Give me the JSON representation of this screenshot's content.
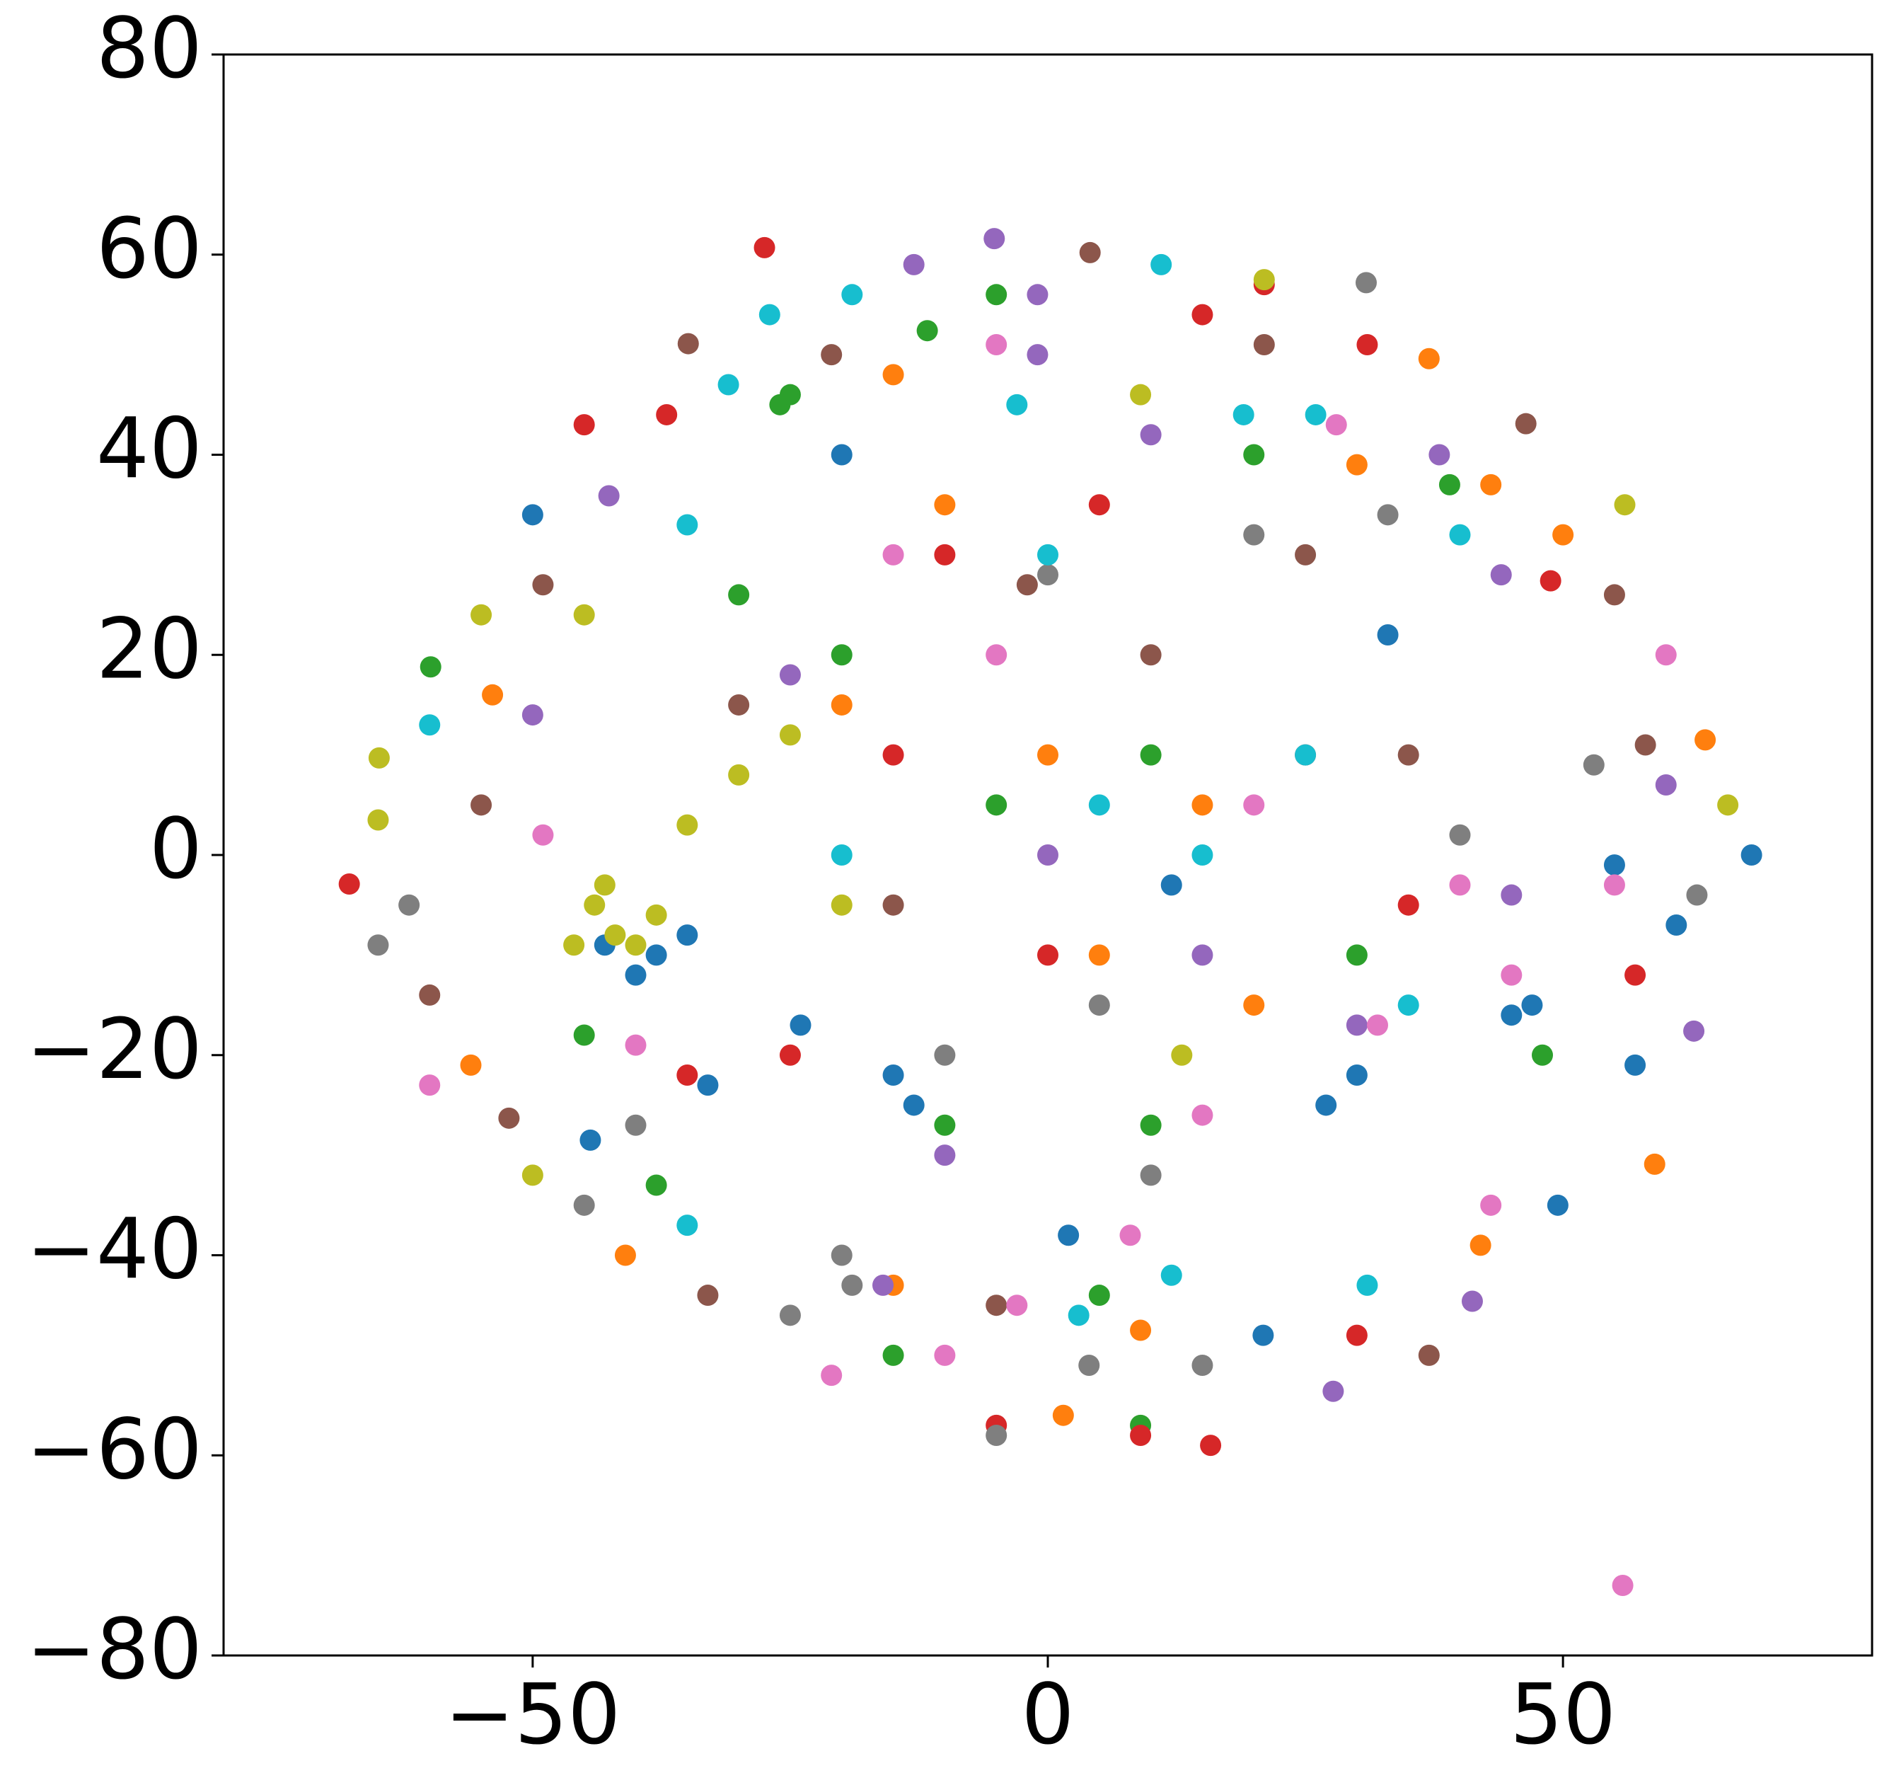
{
  "chart_data": {
    "type": "scatter",
    "xlim": [
      -80,
      80
    ],
    "ylim": [
      -80,
      80
    ],
    "xticks": [
      {
        "value": -50,
        "label": "−50"
      },
      0,
      50
    ],
    "yticks": [
      {
        "value": -80,
        "label": "−80"
      },
      {
        "value": -60,
        "label": "−60"
      },
      {
        "value": -40,
        "label": "−40"
      },
      {
        "value": -20,
        "label": "−20"
      },
      0,
      20,
      40,
      60,
      80
    ],
    "series": [
      {
        "color": "#1f77b4",
        "x": [
          -50,
          68.3,
          -44.4,
          49.5,
          57,
          -33,
          20.9,
          -24,
          -40,
          -38,
          -43,
          -35,
          30,
          27,
          45,
          47,
          12,
          -15,
          -13,
          2,
          33,
          55,
          61,
          -20
        ],
        "values": [
          34,
          0,
          -28.5,
          -35,
          -21,
          -23,
          -48,
          -17,
          -12,
          -10,
          -9,
          -8,
          -22,
          -25,
          -16,
          -15,
          -3,
          -22,
          -25,
          -38,
          22,
          -1,
          -7,
          40
        ]
      },
      {
        "color": "#ff7f0e",
        "x": [
          -41,
          58.9,
          1.5,
          37,
          -15,
          63.8,
          -53.9,
          -56,
          9,
          30,
          50,
          43,
          -10,
          5,
          20,
          -20,
          0,
          15,
          42,
          -15
        ],
        "values": [
          -40,
          -30.9,
          -56,
          49.6,
          48,
          11.5,
          16,
          -21,
          -47.5,
          39,
          32,
          37,
          35,
          -10,
          -15,
          15,
          10,
          5,
          -39,
          -43
        ]
      },
      {
        "color": "#2ca02c",
        "x": [
          -59.9,
          -15,
          9,
          -26,
          -25,
          -11.7,
          -5,
          39,
          20,
          -30,
          -5,
          -45,
          -38,
          10,
          48,
          -20,
          10,
          30,
          -10,
          5
        ],
        "values": [
          18.8,
          -50,
          -57,
          45,
          46,
          52.4,
          56,
          37,
          40,
          26,
          5,
          -18,
          -33,
          -27,
          -20,
          20,
          10,
          -10,
          -27,
          -44
        ]
      },
      {
        "color": "#d62728",
        "x": [
          -67.8,
          -27.5,
          15,
          21,
          31,
          -45,
          -37,
          15.8,
          9,
          -5,
          48.8,
          57,
          30,
          0,
          -10,
          5,
          25,
          -25,
          -15,
          35,
          -35
        ],
        "values": [
          -2.9,
          60.7,
          54,
          57,
          51,
          43,
          44,
          -59,
          -58,
          -57,
          27.4,
          -12,
          -48,
          -10,
          30,
          35,
          10,
          -20,
          10,
          -5,
          -22
        ]
      },
      {
        "color": "#9467bd",
        "x": [
          -5.2,
          -13,
          -1,
          27.7,
          41.2,
          -16,
          62.7,
          60,
          -50,
          -42.6,
          38,
          44,
          -1,
          10,
          -10,
          15,
          -25,
          30,
          45,
          0
        ],
        "values": [
          61.6,
          59,
          56,
          -53.6,
          -44.6,
          -43,
          -17.6,
          7,
          14,
          35.9,
          40,
          28,
          50,
          42,
          -30,
          -10,
          18,
          -17,
          -4,
          0
        ]
      },
      {
        "color": "#8c564b",
        "x": [
          -34.9,
          -21,
          4.1,
          21,
          46.4,
          55,
          58,
          -49,
          -52.3,
          -33,
          37,
          -55,
          -30,
          -15,
          25,
          10,
          -2,
          35,
          -60,
          -5
        ],
        "values": [
          51.1,
          50,
          60.2,
          51,
          43.1,
          26,
          11,
          27,
          -26.3,
          -44,
          -50,
          5,
          15,
          -5,
          30,
          20,
          27,
          10,
          -14,
          -45
        ]
      },
      {
        "color": "#e377c2",
        "x": [
          55.8,
          -60,
          -21,
          -10,
          -5,
          28,
          60,
          -49,
          43,
          8,
          -3,
          45,
          40,
          32,
          15,
          -40,
          20,
          -5,
          55,
          -15
        ],
        "values": [
          -73,
          -23,
          -52,
          -50,
          51,
          43,
          20,
          2,
          -35,
          -38,
          -45,
          -12,
          -3,
          -17,
          -26,
          -19,
          5,
          20,
          -3,
          30
        ]
      },
      {
        "color": "#7f7f7f",
        "x": [
          30.9,
          -25,
          -19,
          -5,
          15,
          4,
          -65,
          -62,
          63,
          53,
          -40,
          -45,
          20,
          33,
          -10,
          5,
          10,
          40,
          -20,
          0
        ],
        "values": [
          57.2,
          -46,
          -43,
          -58,
          -51,
          -51,
          -9,
          -5,
          -4,
          9,
          -27,
          -35,
          32,
          34,
          -20,
          -15,
          -32,
          2,
          -40,
          28
        ]
      },
      {
        "color": "#bcbd22",
        "x": [
          -64.9,
          -65,
          -55,
          -50,
          66,
          21,
          56,
          -45,
          -42,
          -44,
          -40,
          -46,
          -43,
          -38,
          -30,
          -25,
          -20,
          -35,
          13,
          9
        ],
        "values": [
          9.7,
          3.5,
          24,
          -32,
          5,
          57.5,
          35,
          24,
          -8,
          -5,
          -9,
          -9,
          -3,
          -6,
          8,
          12,
          -5,
          3,
          -20,
          46
        ]
      },
      {
        "color": "#17becf",
        "x": [
          -27,
          -19,
          11,
          -60,
          -35,
          -31,
          31,
          -35,
          3,
          12,
          19,
          -3,
          26,
          40,
          15,
          5,
          25,
          0,
          -20,
          35
        ],
        "values": [
          54,
          56,
          59,
          13,
          33,
          47,
          -43,
          -37,
          -46,
          -42,
          44,
          45,
          44,
          32,
          0,
          5,
          10,
          30,
          0,
          -15
        ]
      }
    ]
  }
}
